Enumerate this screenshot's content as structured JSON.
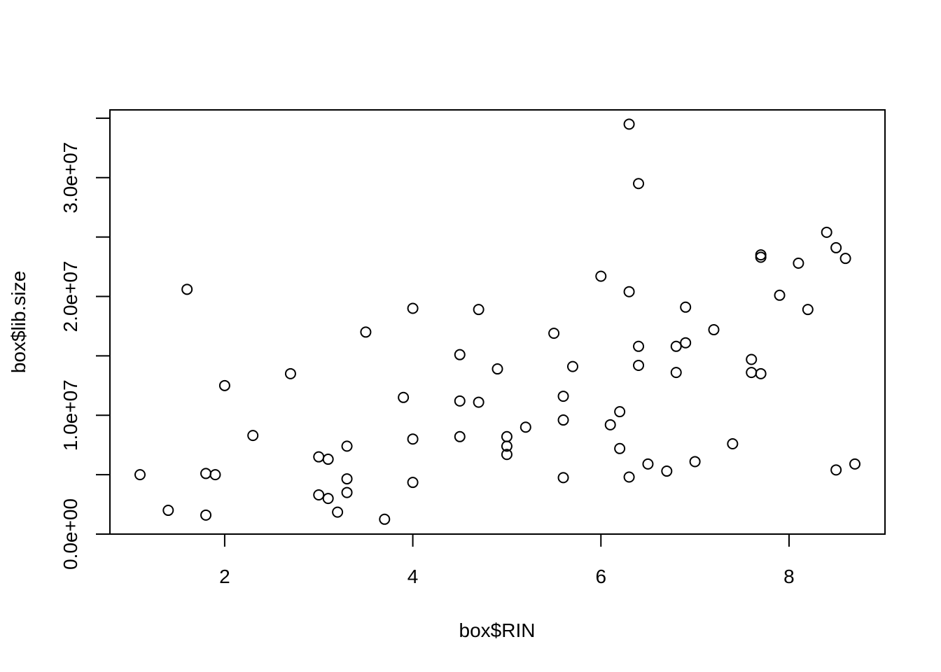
{
  "chart_data": {
    "type": "scatter",
    "title": "",
    "xlabel": "box$RIN",
    "ylabel": "box$lib.size",
    "xlim": [
      0.78,
      9.02
    ],
    "ylim": [
      0,
      35700000
    ],
    "x_ticks": [
      2,
      4,
      6,
      8
    ],
    "x_tick_labels": [
      "2",
      "4",
      "6",
      "8"
    ],
    "y_ticks": [
      0,
      5000000,
      10000000,
      15000000,
      20000000,
      25000000,
      30000000,
      35000000
    ],
    "y_tick_labels": [
      "0.0e+00",
      "",
      "1.0e+07",
      "",
      "2.0e+07",
      "",
      "3.0e+07",
      ""
    ],
    "marker": "open-circle",
    "grid": false,
    "series": [
      {
        "points": [
          [
            1.1,
            5000000
          ],
          [
            1.4,
            2000000
          ],
          [
            1.6,
            20600000
          ],
          [
            1.8,
            5100000
          ],
          [
            1.8,
            1600000
          ],
          [
            1.9,
            5000000
          ],
          [
            2.0,
            12500000
          ],
          [
            2.3,
            8300000
          ],
          [
            2.7,
            13500000
          ],
          [
            3.0,
            6500000
          ],
          [
            3.0,
            3300000
          ],
          [
            3.1,
            6300000
          ],
          [
            3.1,
            3000000
          ],
          [
            3.2,
            1850000
          ],
          [
            3.3,
            7400000
          ],
          [
            3.3,
            4650000
          ],
          [
            3.3,
            3500000
          ],
          [
            3.5,
            17000000
          ],
          [
            3.7,
            1250000
          ],
          [
            3.9,
            11500000
          ],
          [
            4.0,
            19000000
          ],
          [
            4.0,
            8000000
          ],
          [
            4.0,
            4350000
          ],
          [
            4.5,
            15100000
          ],
          [
            4.5,
            11200000
          ],
          [
            4.5,
            8200000
          ],
          [
            4.7,
            18900000
          ],
          [
            4.7,
            11100000
          ],
          [
            4.9,
            13900000
          ],
          [
            5.0,
            8200000
          ],
          [
            5.0,
            7400000
          ],
          [
            5.0,
            6700000
          ],
          [
            5.2,
            9000000
          ],
          [
            5.5,
            16900000
          ],
          [
            5.6,
            11600000
          ],
          [
            5.6,
            9600000
          ],
          [
            5.6,
            4750000
          ],
          [
            5.7,
            14100000
          ],
          [
            6.0,
            21700000
          ],
          [
            6.1,
            9200000
          ],
          [
            6.2,
            10300000
          ],
          [
            6.2,
            7200000
          ],
          [
            6.3,
            34500000
          ],
          [
            6.3,
            20400000
          ],
          [
            6.3,
            4800000
          ],
          [
            6.4,
            29500000
          ],
          [
            6.4,
            15800000
          ],
          [
            6.4,
            14200000
          ],
          [
            6.5,
            5900000
          ],
          [
            6.7,
            5300000
          ],
          [
            6.8,
            15800000
          ],
          [
            6.8,
            13600000
          ],
          [
            6.9,
            19100000
          ],
          [
            6.9,
            16100000
          ],
          [
            7.0,
            6100000
          ],
          [
            7.2,
            17200000
          ],
          [
            7.4,
            7600000
          ],
          [
            7.6,
            14700000
          ],
          [
            7.6,
            13600000
          ],
          [
            7.7,
            23500000
          ],
          [
            7.7,
            23300000
          ],
          [
            7.7,
            13500000
          ],
          [
            7.9,
            20100000
          ],
          [
            8.1,
            22800000
          ],
          [
            8.2,
            18900000
          ],
          [
            8.4,
            25400000
          ],
          [
            8.5,
            24100000
          ],
          [
            8.5,
            5400000
          ],
          [
            8.6,
            23200000
          ],
          [
            8.7,
            5900000
          ]
        ]
      }
    ]
  }
}
